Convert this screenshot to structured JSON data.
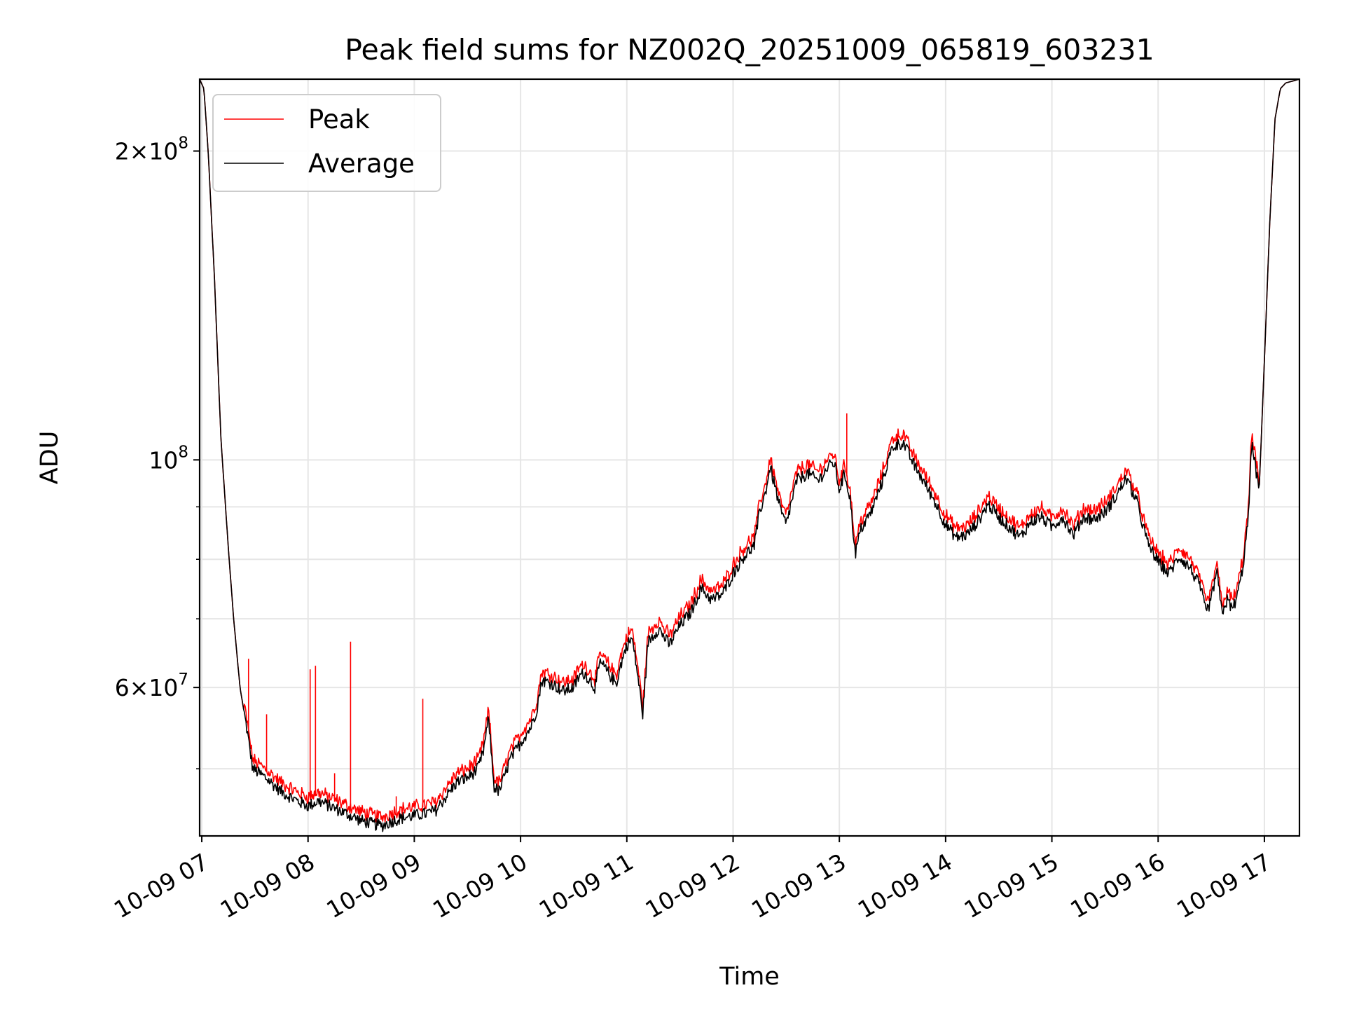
{
  "chart_data": {
    "type": "line",
    "title": "Peak field sums for NZ002Q_20251009_065819_603231",
    "xlabel": "Time",
    "ylabel": "ADU",
    "y_scale": "log",
    "ylim": [
      43000000,
      235000000
    ],
    "xlim": [
      6.98,
      17.33
    ],
    "grid": true,
    "legend_position": "top-left",
    "x_ticks": [
      {
        "value": 7,
        "label": "10-09 07"
      },
      {
        "value": 8,
        "label": "10-09 08"
      },
      {
        "value": 9,
        "label": "10-09 09"
      },
      {
        "value": 10,
        "label": "10-09 10"
      },
      {
        "value": 11,
        "label": "10-09 11"
      },
      {
        "value": 12,
        "label": "10-09 12"
      },
      {
        "value": 13,
        "label": "10-09 13"
      },
      {
        "value": 14,
        "label": "10-09 14"
      },
      {
        "value": 15,
        "label": "10-09 15"
      },
      {
        "value": 16,
        "label": "10-09 16"
      },
      {
        "value": 17,
        "label": "10-09 17"
      }
    ],
    "y_major_ticks": [
      {
        "value": 60000000,
        "base": "6",
        "exp": "7"
      },
      {
        "value": 100000000,
        "base": "10",
        "exp": "8"
      },
      {
        "value": 200000000,
        "base": "2",
        "exp": "8"
      }
    ],
    "y_minor_gridlines": [
      50000000,
      70000000,
      80000000,
      90000000
    ],
    "series": [
      {
        "name": "Average",
        "color": "#000000",
        "points": [
          [
            6.98,
            235000000
          ],
          [
            7.02,
            230000000
          ],
          [
            7.06,
            200000000
          ],
          [
            7.12,
            150000000
          ],
          [
            7.18,
            105000000
          ],
          [
            7.25,
            82000000
          ],
          [
            7.3,
            70000000
          ],
          [
            7.36,
            60000000
          ],
          [
            7.42,
            55000000
          ],
          [
            7.48,
            50000000
          ],
          [
            7.6,
            49000000
          ],
          [
            7.75,
            47500000
          ],
          [
            7.9,
            46500000
          ],
          [
            8.0,
            46000000
          ],
          [
            8.1,
            46500000
          ],
          [
            8.2,
            46000000
          ],
          [
            8.3,
            45500000
          ],
          [
            8.4,
            45000000
          ],
          [
            8.5,
            44500000
          ],
          [
            8.6,
            44200000
          ],
          [
            8.7,
            44000000
          ],
          [
            8.8,
            44500000
          ],
          [
            8.9,
            44800000
          ],
          [
            9.0,
            45000000
          ],
          [
            9.1,
            45200000
          ],
          [
            9.2,
            45500000
          ],
          [
            9.3,
            47000000
          ],
          [
            9.4,
            48500000
          ],
          [
            9.5,
            49000000
          ],
          [
            9.6,
            50000000
          ],
          [
            9.65,
            52000000
          ],
          [
            9.7,
            56000000
          ],
          [
            9.75,
            48000000
          ],
          [
            9.8,
            47500000
          ],
          [
            9.9,
            51000000
          ],
          [
            10.0,
            53000000
          ],
          [
            10.1,
            55000000
          ],
          [
            10.15,
            57000000
          ],
          [
            10.2,
            61000000
          ],
          [
            10.3,
            60500000
          ],
          [
            10.4,
            59500000
          ],
          [
            10.5,
            60000000
          ],
          [
            10.55,
            61500000
          ],
          [
            10.6,
            62000000
          ],
          [
            10.7,
            60000000
          ],
          [
            10.75,
            63500000
          ],
          [
            10.8,
            62500000
          ],
          [
            10.9,
            60500000
          ],
          [
            10.95,
            63500000
          ],
          [
            11.0,
            66000000
          ],
          [
            11.05,
            67000000
          ],
          [
            11.1,
            62000000
          ],
          [
            11.15,
            56500000
          ],
          [
            11.2,
            66500000
          ],
          [
            11.3,
            68500000
          ],
          [
            11.4,
            66000000
          ],
          [
            11.5,
            69000000
          ],
          [
            11.6,
            71000000
          ],
          [
            11.7,
            75000000
          ],
          [
            11.8,
            73000000
          ],
          [
            11.9,
            74000000
          ],
          [
            12.0,
            77500000
          ],
          [
            12.1,
            80500000
          ],
          [
            12.2,
            82500000
          ],
          [
            12.25,
            89000000
          ],
          [
            12.3,
            92500000
          ],
          [
            12.35,
            98500000
          ],
          [
            12.45,
            89000000
          ],
          [
            12.5,
            86500000
          ],
          [
            12.55,
            91000000
          ],
          [
            12.6,
            95500000
          ],
          [
            12.7,
            97000000
          ],
          [
            12.8,
            95500000
          ],
          [
            12.9,
            98500000
          ],
          [
            12.95,
            99500000
          ],
          [
            13.0,
            93500000
          ],
          [
            13.05,
            97000000
          ],
          [
            13.1,
            92000000
          ],
          [
            13.15,
            81000000
          ],
          [
            13.2,
            85500000
          ],
          [
            13.3,
            89000000
          ],
          [
            13.4,
            95000000
          ],
          [
            13.5,
            103000000
          ],
          [
            13.6,
            104000000
          ],
          [
            13.7,
            99000000
          ],
          [
            13.8,
            95000000
          ],
          [
            13.9,
            91000000
          ],
          [
            14.0,
            86500000
          ],
          [
            14.1,
            84000000
          ],
          [
            14.2,
            84500000
          ],
          [
            14.3,
            87000000
          ],
          [
            14.4,
            90500000
          ],
          [
            14.5,
            88000000
          ],
          [
            14.6,
            86000000
          ],
          [
            14.7,
            84000000
          ],
          [
            14.8,
            87000000
          ],
          [
            14.9,
            88000000
          ],
          [
            15.0,
            86000000
          ],
          [
            15.1,
            88000000
          ],
          [
            15.2,
            84500000
          ],
          [
            15.3,
            88000000
          ],
          [
            15.4,
            87500000
          ],
          [
            15.5,
            89000000
          ],
          [
            15.6,
            92000000
          ],
          [
            15.7,
            96000000
          ],
          [
            15.8,
            91000000
          ],
          [
            15.9,
            83000000
          ],
          [
            16.0,
            79500000
          ],
          [
            16.1,
            77500000
          ],
          [
            16.2,
            80500000
          ],
          [
            16.3,
            78500000
          ],
          [
            16.4,
            75000000
          ],
          [
            16.45,
            71000000
          ],
          [
            16.5,
            73000000
          ],
          [
            16.55,
            78000000
          ],
          [
            16.6,
            71000000
          ],
          [
            16.65,
            73000000
          ],
          [
            16.7,
            71500000
          ],
          [
            16.75,
            74000000
          ],
          [
            16.8,
            79000000
          ],
          [
            16.85,
            88000000
          ],
          [
            16.88,
            104000000
          ],
          [
            16.9,
            101000000
          ],
          [
            16.95,
            93000000
          ],
          [
            17.0,
            125000000
          ],
          [
            17.05,
            170000000
          ],
          [
            17.1,
            215000000
          ],
          [
            17.15,
            230000000
          ],
          [
            17.2,
            233000000
          ],
          [
            17.33,
            235000000
          ]
        ]
      },
      {
        "name": "Peak",
        "color": "#ff0000",
        "offset_ratio": 1.015,
        "spikes": [
          [
            7.44,
            64000000
          ],
          [
            7.61,
            56500000
          ],
          [
            8.02,
            62500000
          ],
          [
            8.07,
            63000000
          ],
          [
            8.25,
            49500000
          ],
          [
            8.4,
            66500000
          ],
          [
            8.83,
            47000000
          ],
          [
            9.08,
            58500000
          ],
          [
            13.07,
            111000000
          ]
        ]
      }
    ]
  }
}
